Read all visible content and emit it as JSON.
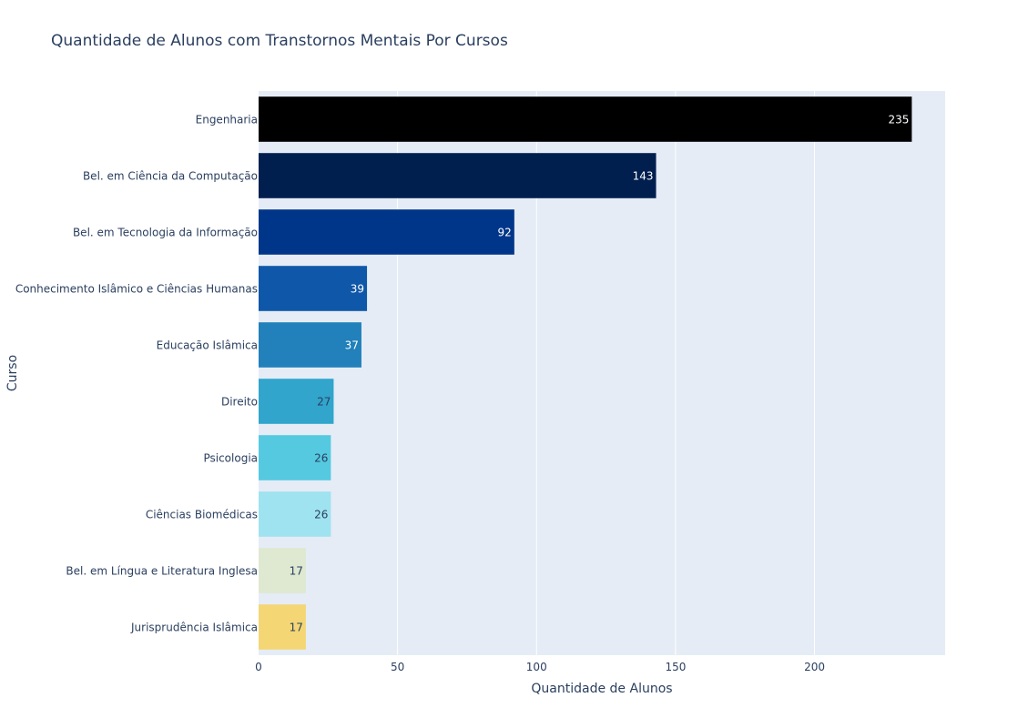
{
  "chart_data": {
    "type": "bar",
    "orientation": "horizontal",
    "title": "Quantidade de Alunos com Transtornos Mentais Por Cursos",
    "xlabel": "Quantidade de Alunos",
    "ylabel": "Curso",
    "xlim": [
      0,
      247
    ],
    "xticks": [
      0,
      50,
      100,
      150,
      200
    ],
    "grid": true,
    "background": "#e5ecf6",
    "categories": [
      "Engenharia",
      "Bel. em Ciência da Computação",
      "Bel. em Tecnologia da Informação",
      "Conhecimento Islâmico e Ciências Humanas",
      "Educação Islâmica",
      "Direito",
      "Psicologia",
      "Ciências Biomédicas",
      "Bel. em Língua e Literatura Inglesa",
      "Jurisprudência Islâmica"
    ],
    "values": [
      235,
      143,
      92,
      39,
      37,
      27,
      26,
      26,
      17,
      17
    ],
    "colors": [
      "#000000",
      "#001f4e",
      "#00368a",
      "#0f57a8",
      "#2280bb",
      "#31a5cc",
      "#55c9e0",
      "#9ee3ef",
      "#dfe8d0",
      "#f4d675"
    ],
    "label_colors": [
      "#ffffff",
      "#ffffff",
      "#ffffff",
      "#ffffff",
      "#ffffff",
      "#2a3f5f",
      "#2a3f5f",
      "#2a3f5f",
      "#2a3f5f",
      "#2a3f5f"
    ]
  }
}
